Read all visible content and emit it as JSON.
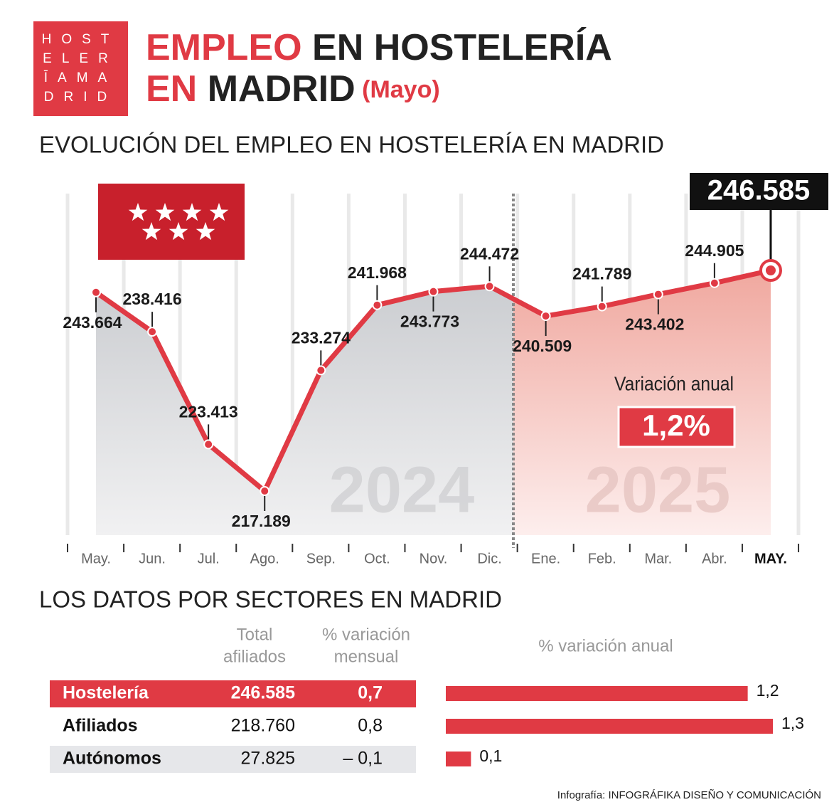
{
  "header": {
    "logo": [
      "HOST",
      "ELER",
      "ĪAMA",
      "DRID"
    ],
    "title_line1": [
      "EMPLEO",
      " EN HOSTELERÍA"
    ],
    "title_line2": [
      "EN",
      " MADRID",
      " (Mayo)"
    ]
  },
  "chart_data": [
    {
      "type": "line",
      "title": "EVOLUCIÓN DEL EMPLEO EN HOSTELERÍA EN MADRID",
      "categories": [
        "May.",
        "Jun.",
        "Jul.",
        "Ago.",
        "Sep.",
        "Oct.",
        "Nov.",
        "Dic.",
        "Ene.",
        "Feb.",
        "Mar.",
        "Abr.",
        "MAY."
      ],
      "values": [
        243664,
        238416,
        223413,
        217189,
        233274,
        241968,
        243773,
        244472,
        240509,
        241789,
        243402,
        244905,
        246585
      ],
      "value_labels": [
        "243.664",
        "238.416",
        "223.413",
        "217.189",
        "233.274",
        "241.968",
        "243.773",
        "244.472",
        "240.509",
        "241.789",
        "243.402",
        "244.905",
        "246.585"
      ],
      "color": "#e03a44",
      "periods": [
        "2024",
        "2025"
      ],
      "annotations": [
        "Variación anual",
        "1,2%"
      ]
    },
    {
      "type": "hbar",
      "title": "% variación anual",
      "values": [
        1.2,
        1.3,
        0.1
      ],
      "value_labels": [
        "1,2",
        "1,3",
        "0,1"
      ],
      "color": "#e03a44"
    }
  ],
  "table": {
    "title": "LOS DATOS POR SECTORES EN MADRID",
    "columns": [
      [
        "Total",
        "afiliados"
      ],
      [
        "% variación",
        "mensual"
      ]
    ],
    "rows": [
      [
        "Hostelería",
        "246.585",
        "0,7"
      ],
      [
        "Afiliados",
        "218.760",
        "0,8"
      ],
      [
        "Autónomos",
        "27.825",
        "– 0,1"
      ]
    ]
  },
  "footer": [
    "Infografía:",
    " INFOGRÁFIKA DISEÑO Y COMUNICACIÓN"
  ]
}
